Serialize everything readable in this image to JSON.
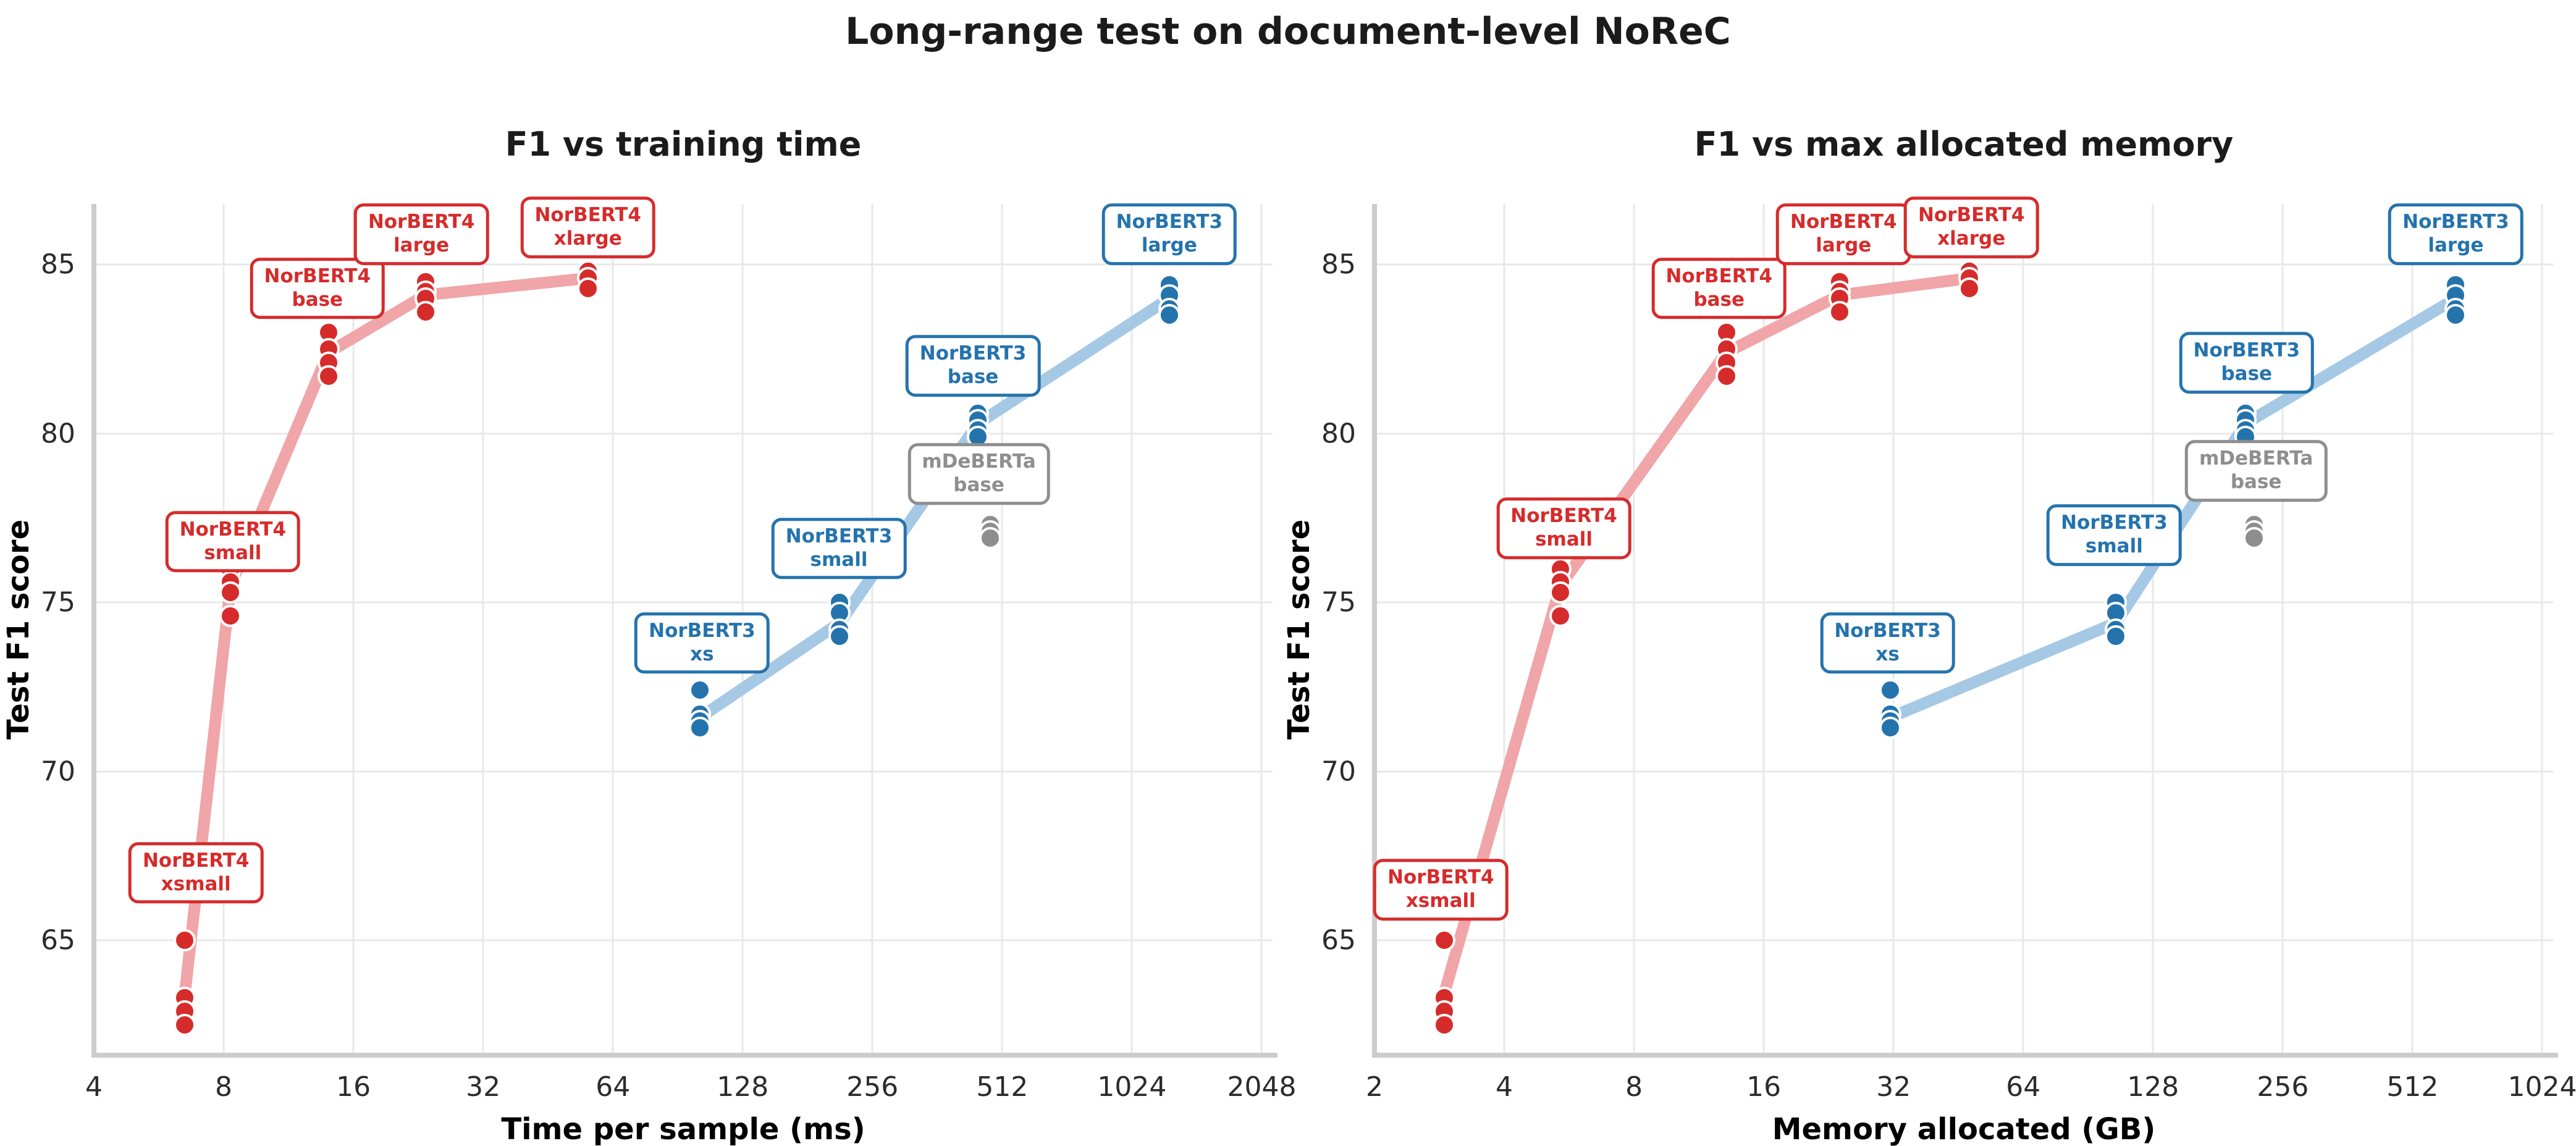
{
  "figure": {
    "title": "Long-range test on document-level NoReC"
  },
  "colors": {
    "norbert4": "#d62b2b",
    "norbert4_line": "#f0a5a8",
    "norbert3": "#2473ad",
    "norbert3_line": "#a5c8e5",
    "mdeberta": "#8e8e8e",
    "mdeberta_line": "#c4c4c4",
    "grid": "#e8e8e8",
    "spine": "#cccccc",
    "tick_label": "#2b2b2b",
    "title": "#1b1b1b"
  },
  "chart_data": [
    {
      "type": "scatter",
      "title": "F1 vs training time",
      "xlabel": "Time per sample (ms)",
      "ylabel": "Test F1 score",
      "xscale": "log2",
      "grid": true,
      "legend": "none (labeled boxes on plot)",
      "xticks": [
        4,
        8,
        16,
        32,
        64,
        128,
        256,
        512,
        1024,
        2048
      ],
      "yticks": [
        65,
        70,
        75,
        80,
        85
      ],
      "xlim": [
        4,
        2170
      ],
      "ylim": [
        61.6,
        86.8
      ],
      "series": [
        {
          "name": "NorBERT4",
          "color": "norbert4",
          "line_color": "norbert4_line",
          "line": true,
          "groups": [
            {
              "label": "NorBERT4 xsmall",
              "x": 6.5,
              "f1": [
                65.0,
                63.3,
                62.9,
                62.5
              ],
              "line_y": 63.4,
              "label_x": 6.9,
              "label_y": 67.0
            },
            {
              "label": "NorBERT4 small",
              "x": 8.3,
              "f1": [
                76.0,
                75.6,
                75.3,
                74.6
              ],
              "line_y": 75.5,
              "label_x": 8.4,
              "label_y": 76.8
            },
            {
              "label": "NorBERT4 base",
              "x": 14.0,
              "f1": [
                83.0,
                82.5,
                82.1,
                81.7
              ],
              "line_y": 82.4,
              "label_x": 13.2,
              "label_y": 84.3
            },
            {
              "label": "NorBERT4 large",
              "x": 23.5,
              "f1": [
                84.5,
                84.2,
                84.0,
                83.6
              ],
              "line_y": 84.1,
              "label_x": 23.0,
              "label_y": 85.9
            },
            {
              "label": "NorBERT4 xlarge",
              "x": 56.0,
              "f1": [
                84.8,
                84.6,
                84.3
              ],
              "line_y": 84.6,
              "label_x": 56.0,
              "label_y": 86.1
            }
          ]
        },
        {
          "name": "NorBERT3",
          "color": "norbert3",
          "line_color": "norbert3_line",
          "line": true,
          "groups": [
            {
              "label": "NorBERT3 xs",
              "x": 102,
              "f1": [
                72.4,
                71.7,
                71.5,
                71.3
              ],
              "line_y": 71.6,
              "label_x": 103,
              "label_y": 73.8
            },
            {
              "label": "NorBERT3 small",
              "x": 215,
              "f1": [
                75.0,
                74.7,
                74.2,
                74.0
              ],
              "line_y": 74.4,
              "label_x": 214,
              "label_y": 76.6
            },
            {
              "label": "NorBERT3 base",
              "x": 450,
              "f1": [
                80.6,
                80.4,
                80.1,
                79.9
              ],
              "line_y": 80.3,
              "label_x": 438,
              "label_y": 82.0
            },
            {
              "label": "NorBERT3 large",
              "x": 1250,
              "f1": [
                84.4,
                84.1,
                83.7,
                83.5
              ],
              "line_y": 84.0,
              "label_x": 1250,
              "label_y": 85.9
            }
          ]
        },
        {
          "name": "mDeBERTa",
          "color": "mdeberta",
          "line_color": "mdeberta_line",
          "line": false,
          "groups": [
            {
              "label": "mDeBERTa base",
              "x": 480,
              "f1": [
                77.3,
                77.1,
                76.9
              ],
              "line_y": 77.1,
              "label_x": 452,
              "label_y": 78.8
            }
          ]
        }
      ]
    },
    {
      "type": "scatter",
      "title": "F1 vs max allocated memory",
      "xlabel": "Memory allocated (GB)",
      "ylabel": "Test F1 score",
      "xscale": "log2",
      "grid": true,
      "legend": "none (labeled boxes on plot)",
      "xticks": [
        2,
        4,
        8,
        16,
        32,
        64,
        128,
        256,
        512,
        1024
      ],
      "yticks": [
        65,
        70,
        75,
        80,
        85
      ],
      "xlim": [
        2,
        1085
      ],
      "ylim": [
        61.6,
        86.8
      ],
      "series": [
        {
          "name": "NorBERT4",
          "color": "norbert4",
          "line_color": "norbert4_line",
          "line": true,
          "groups": [
            {
              "label": "NorBERT4 xsmall",
              "x": 2.9,
              "f1": [
                65.0,
                63.3,
                62.9,
                62.5
              ],
              "line_y": 63.4,
              "label_x": 2.85,
              "label_y": 66.5
            },
            {
              "label": "NorBERT4 small",
              "x": 5.4,
              "f1": [
                76.0,
                75.6,
                75.3,
                74.6
              ],
              "line_y": 75.5,
              "label_x": 5.5,
              "label_y": 77.2
            },
            {
              "label": "NorBERT4 base",
              "x": 13.1,
              "f1": [
                83.0,
                82.5,
                82.1,
                81.7
              ],
              "line_y": 82.4,
              "label_x": 12.6,
              "label_y": 84.3
            },
            {
              "label": "NorBERT4 large",
              "x": 24.0,
              "f1": [
                84.5,
                84.2,
                84.0,
                83.6
              ],
              "line_y": 84.1,
              "label_x": 24.5,
              "label_y": 85.9
            },
            {
              "label": "NorBERT4 xlarge",
              "x": 48.0,
              "f1": [
                84.8,
                84.6,
                84.3
              ],
              "line_y": 84.6,
              "label_x": 48.5,
              "label_y": 86.1
            }
          ]
        },
        {
          "name": "NorBERT3",
          "color": "norbert3",
          "line_color": "norbert3_line",
          "line": true,
          "groups": [
            {
              "label": "NorBERT3 xs",
              "x": 31.5,
              "f1": [
                72.4,
                71.7,
                71.5,
                71.3
              ],
              "line_y": 71.6,
              "label_x": 31.0,
              "label_y": 73.8
            },
            {
              "label": "NorBERT3 small",
              "x": 105,
              "f1": [
                75.0,
                74.7,
                74.2,
                74.0
              ],
              "line_y": 74.4,
              "label_x": 104,
              "label_y": 77.0
            },
            {
              "label": "NorBERT3 base",
              "x": 210,
              "f1": [
                80.6,
                80.4,
                80.1,
                79.9
              ],
              "line_y": 80.3,
              "label_x": 211,
              "label_y": 82.1
            },
            {
              "label": "NorBERT3 large",
              "x": 645,
              "f1": [
                84.4,
                84.1,
                83.7,
                83.5
              ],
              "line_y": 84.0,
              "label_x": 645,
              "label_y": 85.9
            }
          ]
        },
        {
          "name": "mDeBERTa",
          "color": "mdeberta",
          "line_color": "mdeberta_line",
          "line": false,
          "groups": [
            {
              "label": "mDeBERTa base",
              "x": 220,
              "f1": [
                77.3,
                77.1,
                76.9
              ],
              "line_y": 77.1,
              "label_x": 222,
              "label_y": 78.9
            }
          ]
        }
      ]
    }
  ]
}
